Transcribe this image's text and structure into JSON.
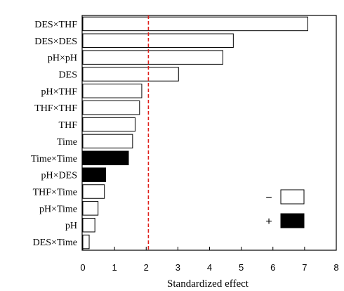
{
  "chart_data": {
    "type": "bar",
    "orientation": "horizontal",
    "categories": [
      "DES×THF",
      "DES×DES",
      "pH×pH",
      "DES",
      "pH×THF",
      "THF×THF",
      "THF",
      "Time",
      "Time×Time",
      "pH×DES",
      "THF×Time",
      "pH×Time",
      "pH",
      "DES×Time"
    ],
    "values": [
      7.1,
      4.75,
      4.42,
      3.02,
      1.86,
      1.79,
      1.65,
      1.57,
      1.44,
      0.72,
      0.68,
      0.48,
      0.38,
      0.2
    ],
    "signs": [
      "+",
      "+",
      "+",
      "+",
      "+",
      "+",
      "+",
      "+",
      "-",
      "-",
      "+",
      "+",
      "+",
      "+"
    ],
    "xlabel": "Standardized effect",
    "xlim": [
      0,
      8
    ],
    "xticks": [
      "0",
      "1",
      "2",
      "3",
      "4",
      "5",
      "6",
      "7",
      "8"
    ],
    "reference_line": {
      "value": 2.07,
      "color": "#e0201b",
      "style": "dashed"
    },
    "legend": {
      "placement": "bottom-right",
      "items": [
        {
          "label": "−",
          "fill": "#ffffff"
        },
        {
          "label": "+",
          "fill": "#000000"
        }
      ]
    },
    "grid": false
  }
}
